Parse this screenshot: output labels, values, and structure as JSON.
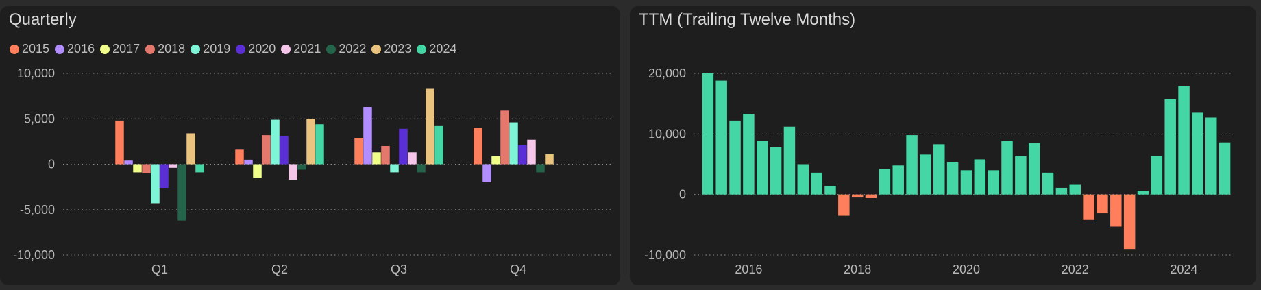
{
  "chart_data": [
    {
      "type": "bar",
      "title": "Quarterly",
      "categories": [
        "Q1",
        "Q2",
        "Q3",
        "Q4"
      ],
      "ylim": [
        -10000,
        10000
      ],
      "yticks": [
        10000,
        5000,
        0,
        -5000,
        -10000
      ],
      "ytick_labels": [
        "10,000",
        "5,000",
        "0",
        "-5,000",
        "-10,000"
      ],
      "grid": true,
      "legend_position": "top-left",
      "series": [
        {
          "name": "2015",
          "color": "#ff7f5c",
          "values": [
            4800,
            1600,
            2900,
            4000
          ]
        },
        {
          "name": "2016",
          "color": "#b28dff",
          "values": [
            400,
            500,
            6300,
            -2000
          ]
        },
        {
          "name": "2017",
          "color": "#f0ff8a",
          "values": [
            -900,
            -1500,
            1300,
            900
          ]
        },
        {
          "name": "2018",
          "color": "#e4786c",
          "values": [
            -1000,
            3200,
            2000,
            5900
          ]
        },
        {
          "name": "2019",
          "color": "#7ff5d8",
          "values": [
            -4300,
            4900,
            -900,
            4600
          ]
        },
        {
          "name": "2020",
          "color": "#5b2fd6",
          "values": [
            -2600,
            3100,
            3900,
            2100
          ]
        },
        {
          "name": "2021",
          "color": "#f5c6ea",
          "values": [
            -400,
            -1700,
            1300,
            2700
          ]
        },
        {
          "name": "2022",
          "color": "#23644a",
          "values": [
            -6200,
            -600,
            -900,
            -900
          ]
        },
        {
          "name": "2023",
          "color": "#eac47e",
          "values": [
            3400,
            5000,
            8300,
            1100
          ]
        },
        {
          "name": "2024",
          "color": "#45d6a6",
          "values": [
            -900,
            4400,
            4200,
            null
          ]
        }
      ]
    },
    {
      "type": "bar",
      "title": "TTM (Trailing Twelve Months)",
      "x_start": 2015.25,
      "x_step": 0.25,
      "xlim": [
        2015,
        2024.9
      ],
      "xticks": [
        2016,
        2018,
        2020,
        2022,
        2024
      ],
      "xtick_labels": [
        "2016",
        "2018",
        "2020",
        "2022",
        "2024"
      ],
      "ylim": [
        -10000,
        20000
      ],
      "yticks": [
        20000,
        10000,
        0,
        -10000
      ],
      "ytick_labels": [
        "20,000",
        "10,000",
        "0",
        "-10,000"
      ],
      "grid": true,
      "positive_color": "#45d6a6",
      "negative_color": "#ff7f5c",
      "values": [
        20000,
        18800,
        12200,
        13300,
        8900,
        7800,
        11200,
        5000,
        3600,
        1400,
        -3500,
        -500,
        -600,
        4200,
        4800,
        9800,
        6600,
        8300,
        5300,
        4000,
        5800,
        4000,
        8800,
        6300,
        8500,
        3600,
        1100,
        1600,
        -4200,
        -3100,
        -5300,
        -9000,
        600,
        6400,
        15700,
        17900,
        13500,
        12700,
        8600
      ]
    }
  ]
}
